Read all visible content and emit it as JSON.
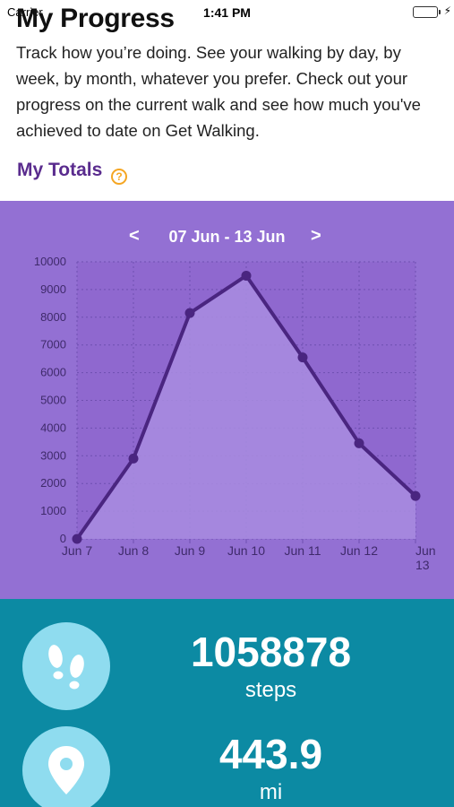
{
  "status_bar": {
    "carrier": "Carrier",
    "time": "1:41 PM",
    "battery_color": "#4cd964"
  },
  "header": {
    "title": "My Progress",
    "intro": "Track how you’re doing. See your walking by day, by week, by month, whatever you prefer. Check out your progress on the current walk and see how much you've achieved to date on Get Walking."
  },
  "totals": {
    "heading": "My Totals",
    "help_icon": "question-circle-icon",
    "help_glyph": "?"
  },
  "chart_panel": {
    "prev_label": "<",
    "range_label": "07 Jun - 13 Jun",
    "next_label": ">",
    "background": "#9370d3"
  },
  "chart_data": {
    "type": "area",
    "categories": [
      "Jun 7",
      "Jun 8",
      "Jun 9",
      "Jun 10",
      "Jun 11",
      "Jun 12",
      "Jun 13"
    ],
    "values": [
      0,
      2900,
      8150,
      9500,
      6550,
      3450,
      1550
    ],
    "y_ticks": [
      "0",
      "1000",
      "2000",
      "3000",
      "4000",
      "5000",
      "6000",
      "7000",
      "8000",
      "9000",
      "10000"
    ],
    "ylim": [
      0,
      10000
    ],
    "grid": true,
    "line_color": "#4a2580",
    "fill_color": "#a98de0"
  },
  "stats": [
    {
      "icon": "footsteps-icon",
      "value": "1058878",
      "unit": "steps"
    },
    {
      "icon": "map-pin-icon",
      "value": "443.9",
      "unit": "mi"
    }
  ],
  "colors": {
    "accent_purple": "#5a2c8e",
    "help_orange": "#f5a623",
    "stats_background": "#0c8aa3",
    "icon_circle": "#8fdcef"
  }
}
